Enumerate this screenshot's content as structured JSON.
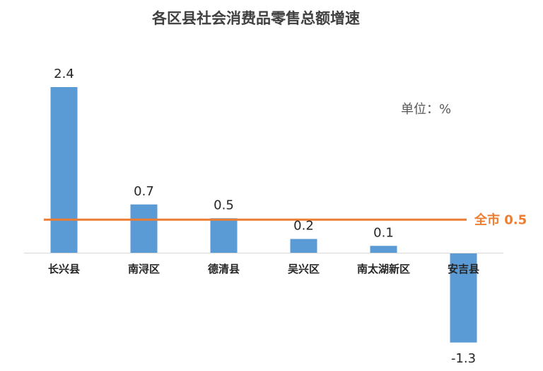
{
  "chart_data": {
    "type": "bar",
    "title": "各区县社会消费品零售总额增速",
    "unit_label": "单位：%",
    "categories": [
      "长兴县",
      "南浔区",
      "德清县",
      "吴兴区",
      "南太湖新区",
      "安吉县"
    ],
    "values": [
      2.4,
      0.7,
      0.5,
      0.2,
      0.1,
      -1.3
    ],
    "value_labels": [
      "2.4",
      "0.7",
      "0.5",
      "0.2",
      "0.1",
      "-1.3"
    ],
    "reference_line": {
      "label": "全市 0.5",
      "value": 0.5
    },
    "ylim": [
      -1.3,
      2.4
    ],
    "grid": false,
    "legend": "none",
    "colors": {
      "bar": "#5b9bd5",
      "reference": "#ed7d31",
      "axis": "#d9d9d9"
    }
  }
}
